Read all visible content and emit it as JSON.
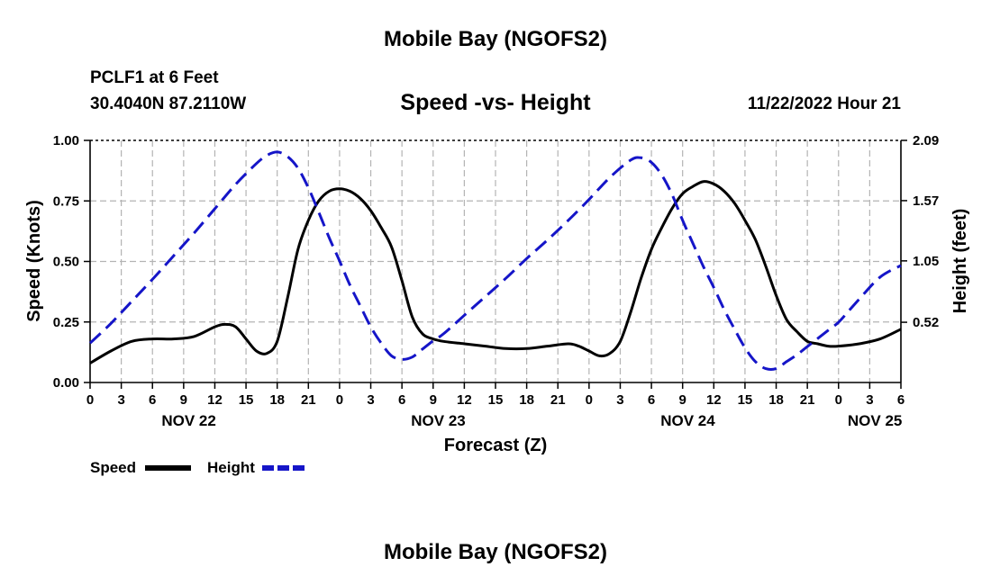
{
  "header": {
    "title": "Mobile Bay (NGOFS2)",
    "station": "PCLF1 at 6 Feet",
    "coords": "30.4040N  87.2110W",
    "subtitle": "Speed -vs- Height",
    "datetime": "11/22/2022 Hour 21",
    "footer_title": "Mobile Bay (NGOFS2)"
  },
  "chart_data": {
    "type": "line",
    "xlabel": "Forecast (Z)",
    "ylabel": "Speed (Knots)",
    "y2label": "Height (feet)",
    "xlim": [
      0,
      78
    ],
    "ylim": [
      0,
      1.0
    ],
    "y2lim": [
      0,
      2.09
    ],
    "x_tick_labels": [
      "0",
      "3",
      "6",
      "9",
      "12",
      "15",
      "18",
      "21",
      "0",
      "3",
      "6",
      "9",
      "12",
      "15",
      "18",
      "21",
      "0",
      "3",
      "6",
      "9",
      "12",
      "15",
      "18",
      "21",
      "0",
      "3",
      "6"
    ],
    "y_ticks": [
      0,
      0.25,
      0.5,
      0.75,
      1.0
    ],
    "y_tick_labels": [
      "0.00",
      "0.25",
      "0.50",
      "0.75",
      "1.00"
    ],
    "y2_ticks": [
      0.52,
      1.05,
      1.57,
      2.09
    ],
    "y2_tick_labels": [
      "0.52",
      "1.05",
      "1.57",
      "2.09"
    ],
    "date_labels": [
      {
        "label": "NOV 22",
        "x": 9.5
      },
      {
        "label": "NOV 23",
        "x": 33.5
      },
      {
        "label": "NOV 24",
        "x": 57.5
      },
      {
        "label": "NOV 25",
        "x": 75.5
      }
    ],
    "series": [
      {
        "name": "Speed",
        "axis": "left",
        "color": "#000000",
        "style": "solid",
        "x": [
          0,
          2,
          4,
          6,
          8,
          10,
          12,
          13,
          14,
          15,
          16,
          17,
          18,
          19,
          20,
          21,
          22,
          23,
          24,
          25,
          26,
          27,
          28,
          29,
          30,
          31,
          32,
          33,
          34,
          36,
          38,
          40,
          42,
          44,
          46,
          47,
          48,
          49,
          50,
          51,
          52,
          53,
          54,
          55,
          56,
          57,
          58,
          59,
          60,
          61,
          62,
          63,
          64,
          65,
          66,
          67,
          68,
          69,
          70,
          71,
          72,
          74,
          76,
          78
        ],
        "y": [
          0.08,
          0.13,
          0.17,
          0.18,
          0.18,
          0.19,
          0.23,
          0.24,
          0.23,
          0.18,
          0.13,
          0.12,
          0.17,
          0.35,
          0.55,
          0.67,
          0.75,
          0.79,
          0.8,
          0.79,
          0.76,
          0.71,
          0.64,
          0.56,
          0.42,
          0.27,
          0.2,
          0.18,
          0.17,
          0.16,
          0.15,
          0.14,
          0.14,
          0.15,
          0.16,
          0.15,
          0.13,
          0.11,
          0.12,
          0.17,
          0.29,
          0.43,
          0.55,
          0.64,
          0.72,
          0.78,
          0.81,
          0.83,
          0.82,
          0.79,
          0.74,
          0.67,
          0.59,
          0.48,
          0.36,
          0.26,
          0.21,
          0.17,
          0.16,
          0.15,
          0.15,
          0.16,
          0.18,
          0.22
        ]
      },
      {
        "name": "Height",
        "axis": "right",
        "color": "#1515c8",
        "style": "dashed",
        "x": [
          0,
          2,
          4,
          6,
          8,
          10,
          12,
          14,
          16,
          17,
          18,
          19,
          20,
          21,
          22,
          23,
          24,
          25,
          26,
          27,
          28,
          29,
          30,
          31,
          32,
          33,
          34,
          36,
          38,
          40,
          42,
          44,
          46,
          48,
          50,
          52,
          53,
          54,
          55,
          56,
          57,
          58,
          59,
          60,
          61,
          62,
          63,
          64,
          65,
          66,
          67,
          68,
          69,
          70,
          71,
          72,
          73,
          74,
          76,
          78
        ],
        "y": [
          0.34,
          0.51,
          0.7,
          0.89,
          1.09,
          1.29,
          1.5,
          1.71,
          1.89,
          1.96,
          1.99,
          1.95,
          1.85,
          1.68,
          1.47,
          1.25,
          1.05,
          0.84,
          0.66,
          0.48,
          0.34,
          0.23,
          0.2,
          0.22,
          0.29,
          0.36,
          0.42,
          0.58,
          0.74,
          0.9,
          1.07,
          1.23,
          1.4,
          1.58,
          1.77,
          1.92,
          1.94,
          1.9,
          1.79,
          1.62,
          1.4,
          1.2,
          1.0,
          0.82,
          0.63,
          0.46,
          0.3,
          0.18,
          0.12,
          0.12,
          0.18,
          0.24,
          0.31,
          0.38,
          0.45,
          0.52,
          0.62,
          0.72,
          0.91,
          1.01
        ]
      }
    ],
    "legend": [
      {
        "name": "Speed",
        "color": "#000000",
        "style": "solid"
      },
      {
        "name": "Height",
        "color": "#1515c8",
        "style": "dashed"
      }
    ],
    "legend_position": "bottom-left",
    "grid": true
  }
}
